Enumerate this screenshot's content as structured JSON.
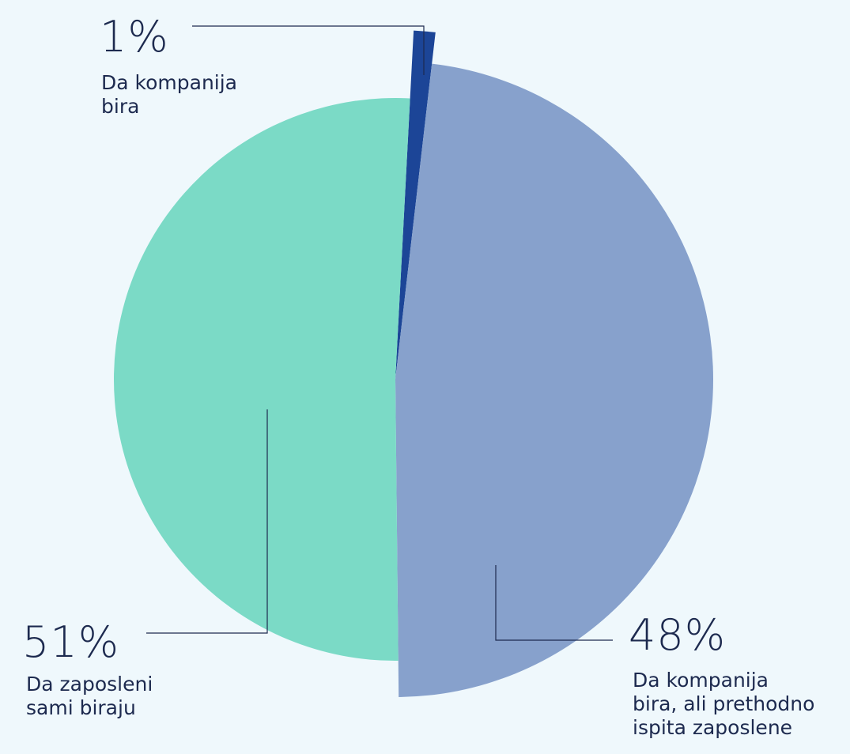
{
  "chart_data": {
    "type": "pie",
    "categories": [
      "Da kompanija\nbira",
      "Da kompanija\nbira, ali prethodno\nispita zaposlene",
      "Da zaposleni\nsami biraju"
    ],
    "values": [
      1,
      48,
      51
    ],
    "value_labels": [
      "1%",
      "48%",
      "51%"
    ],
    "colors": [
      "#1c4597",
      "#87a1cc",
      "#7bdac6"
    ]
  }
}
